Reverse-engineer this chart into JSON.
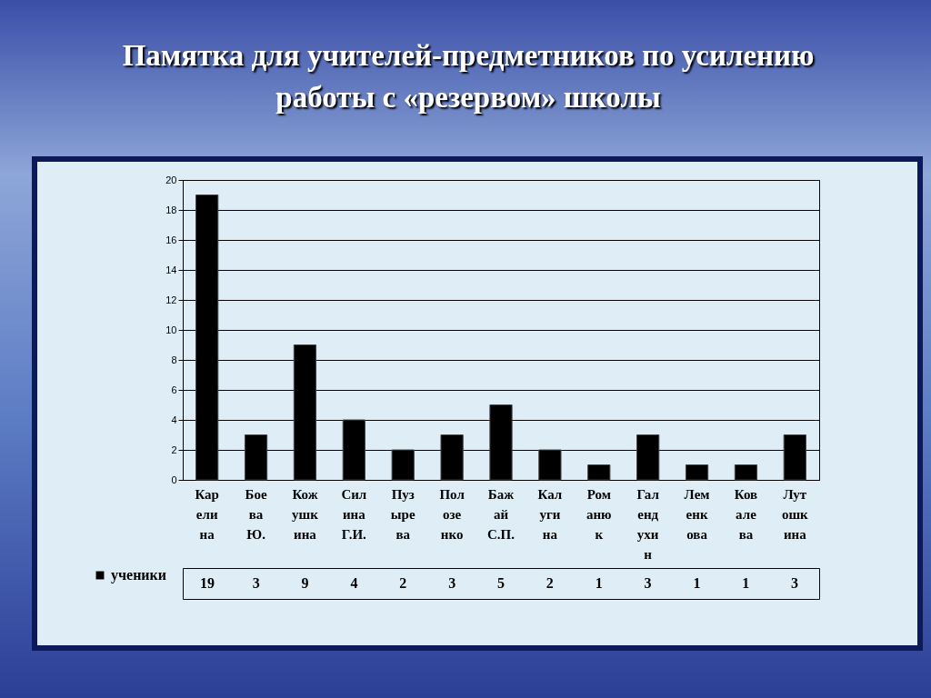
{
  "chart_data": {
    "type": "bar",
    "title": "Памятка для учителей-предметников по усилению работы с «резервом» школы",
    "categories": [
      "Карелина",
      "Боева Ю.",
      "Кожушкина",
      "Силина Г.И.",
      "Пузырева",
      "Полозенко",
      "Бажай С.П.",
      "Калугина",
      "Романюк",
      "Галендухин",
      "Леменкова",
      "Ковалева",
      "Лутошкина"
    ],
    "series": [
      {
        "name": "ученики",
        "color": "#000000",
        "values": [
          19,
          3,
          9,
          4,
          2,
          3,
          5,
          2,
          1,
          3,
          1,
          1,
          3
        ]
      }
    ],
    "ylim": [
      0,
      20
    ],
    "yticks": [
      0,
      2,
      4,
      6,
      8,
      10,
      12,
      14,
      16,
      18,
      20
    ],
    "grid": "y",
    "legend": "bottom left",
    "data_labels": true
  }
}
